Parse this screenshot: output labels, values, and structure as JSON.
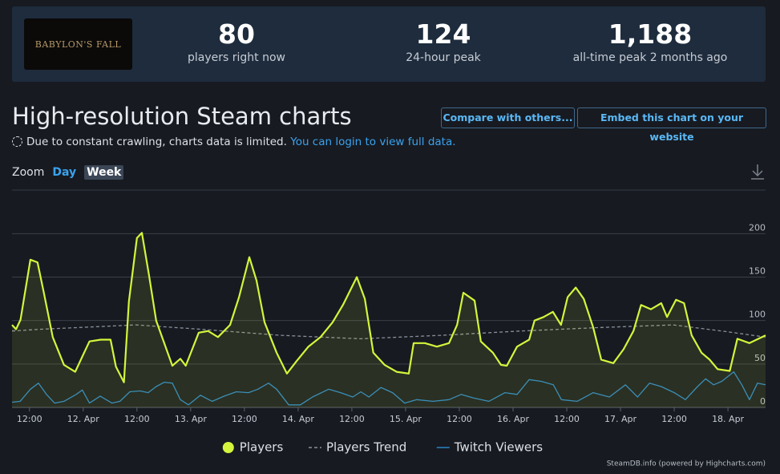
{
  "header": {
    "logo_text": "BABYLON'S FALL",
    "stats": [
      {
        "value": "80",
        "label": "players right now"
      },
      {
        "value": "124",
        "label": "24-hour peak"
      },
      {
        "value": "1,188",
        "label": "all-time peak 2 months ago"
      }
    ]
  },
  "title": "High-resolution Steam charts",
  "notice": {
    "text": "Due to constant crawling, charts data is limited.",
    "link": "You can login to view full data."
  },
  "buttons": [
    "Compare with others...",
    "Embed this chart on your website"
  ],
  "zoom": {
    "label": "Zoom",
    "options": [
      "Day",
      "Week"
    ]
  },
  "chart_data": {
    "type": "line",
    "grid": true,
    "legend": "bottom",
    "xlim": [
      8.1,
      176.4
    ],
    "xticks": [
      {
        "value": 12,
        "label": "12:00"
      },
      {
        "value": 24,
        "label": "12. Apr"
      },
      {
        "value": 36,
        "label": "12:00"
      },
      {
        "value": 48,
        "label": "13. Apr"
      },
      {
        "value": 60,
        "label": "12:00"
      },
      {
        "value": 72,
        "label": "14. Apr"
      },
      {
        "value": 84,
        "label": "12:00"
      },
      {
        "value": 96,
        "label": "15. Apr"
      },
      {
        "value": 108,
        "label": "12:00"
      },
      {
        "value": 120,
        "label": "16. Apr"
      },
      {
        "value": 132,
        "label": "12:00"
      },
      {
        "value": 144,
        "label": "17. Apr"
      },
      {
        "value": 156,
        "label": "12:00"
      },
      {
        "value": 168,
        "label": "18. Apr"
      }
    ],
    "ylim": [
      0,
      240
    ],
    "yticks": [
      0,
      50,
      100,
      150,
      200
    ],
    "series": [
      {
        "name": "Players",
        "color": "#d4f53c",
        "area": true,
        "marker": true,
        "x": [
          8.1,
          9.0,
          10.0,
          12.2,
          13.8,
          15.2,
          17.2,
          19.7,
          22.2,
          24.2,
          25.4,
          27.9,
          30.1,
          31.3,
          33.1,
          34.2,
          36.0,
          37.1,
          38.7,
          40.3,
          43.9,
          45.7,
          46.9,
          49.8,
          51.9,
          54.1,
          56.8,
          58.8,
          61.1,
          62.7,
          64.5,
          67.2,
          69.5,
          71.6,
          74.3,
          77.0,
          79.7,
          82.0,
          85.1,
          86.9,
          88.8,
          91.3,
          94.0,
          96.7,
          97.8,
          100.3,
          103.0,
          105.7,
          107.5,
          108.9,
          111.4,
          112.8,
          115.5,
          117.3,
          118.6,
          120.9,
          123.6,
          124.8,
          126.8,
          128.9,
          130.7,
          132.2,
          134.0,
          135.8,
          137.9,
          139.7,
          142.4,
          144.7,
          146.9,
          148.6,
          150.8,
          153.1,
          154.4,
          156.4,
          158.2,
          159.9,
          162.1,
          163.9,
          165.7,
          168.4,
          170.1,
          172.8,
          176.4
        ],
        "values": [
          95,
          90,
          101,
          170,
          167,
          132,
          81,
          49,
          41,
          63,
          76,
          78,
          78,
          47,
          29,
          122,
          195,
          201,
          152,
          100,
          48,
          56,
          48,
          86,
          88,
          81,
          95,
          127,
          173,
          146,
          98,
          63,
          39,
          53,
          70,
          81,
          98,
          118,
          150,
          125,
          63,
          49,
          41,
          39,
          74,
          74,
          70,
          74,
          95,
          132,
          123,
          76,
          63,
          49,
          48,
          70,
          78,
          100,
          104,
          110,
          95,
          127,
          138,
          125,
          92,
          55,
          51,
          67,
          88,
          118,
          113,
          120,
          104,
          124,
          120,
          83,
          63,
          55,
          44,
          42,
          79,
          74,
          83
        ]
      },
      {
        "name": "Players Trend",
        "color": "#8a8f98",
        "dash": true,
        "x": [
          8.1,
          14.6,
          35.8,
          50.2,
          68.1,
          86.0,
          103.9,
          121.8,
          139.7,
          155.8,
          166.6,
          176.4
        ],
        "values": [
          88,
          90,
          95,
          90,
          83,
          79,
          83,
          88,
          92,
          95,
          88,
          81
        ]
      },
      {
        "name": "Twitch Viewers",
        "color": "#2a83c6",
        "x": [
          8.1,
          9.9,
          12.2,
          14.0,
          15.8,
          17.6,
          19.7,
          22.4,
          23.8,
          25.4,
          27.8,
          30.4,
          32.2,
          34.4,
          36.7,
          38.5,
          40.3,
          42.1,
          43.9,
          45.7,
          47.5,
          50.2,
          52.8,
          55.5,
          58.2,
          60.9,
          63.0,
          65.4,
          67.2,
          69.9,
          72.5,
          75.2,
          78.8,
          81.5,
          84.2,
          86.0,
          87.8,
          90.5,
          93.1,
          95.8,
          98.5,
          102.1,
          105.7,
          108.4,
          111.1,
          114.6,
          118.2,
          120.9,
          123.6,
          126.3,
          129.0,
          130.8,
          134.3,
          137.9,
          141.5,
          145.1,
          147.8,
          150.5,
          153.1,
          156.0,
          158.5,
          161.2,
          163.0,
          164.8,
          166.6,
          169.3,
          171.1,
          172.8,
          174.6,
          176.4
        ],
        "values": [
          6,
          7,
          21,
          28,
          15,
          5,
          7,
          15,
          20,
          5,
          13,
          5,
          7,
          18,
          19,
          17,
          24,
          29,
          28,
          9,
          3,
          14,
          7,
          13,
          18,
          17,
          21,
          28,
          21,
          3,
          3,
          12,
          21,
          17,
          12,
          18,
          12,
          23,
          17,
          5,
          9,
          7,
          9,
          15,
          11,
          7,
          17,
          15,
          32,
          30,
          26,
          9,
          7,
          17,
          12,
          26,
          12,
          28,
          24,
          17,
          9,
          24,
          33,
          26,
          30,
          41,
          26,
          9,
          28,
          26
        ]
      }
    ]
  },
  "credits": "SteamDB.info (powered by Highcharts.com)"
}
